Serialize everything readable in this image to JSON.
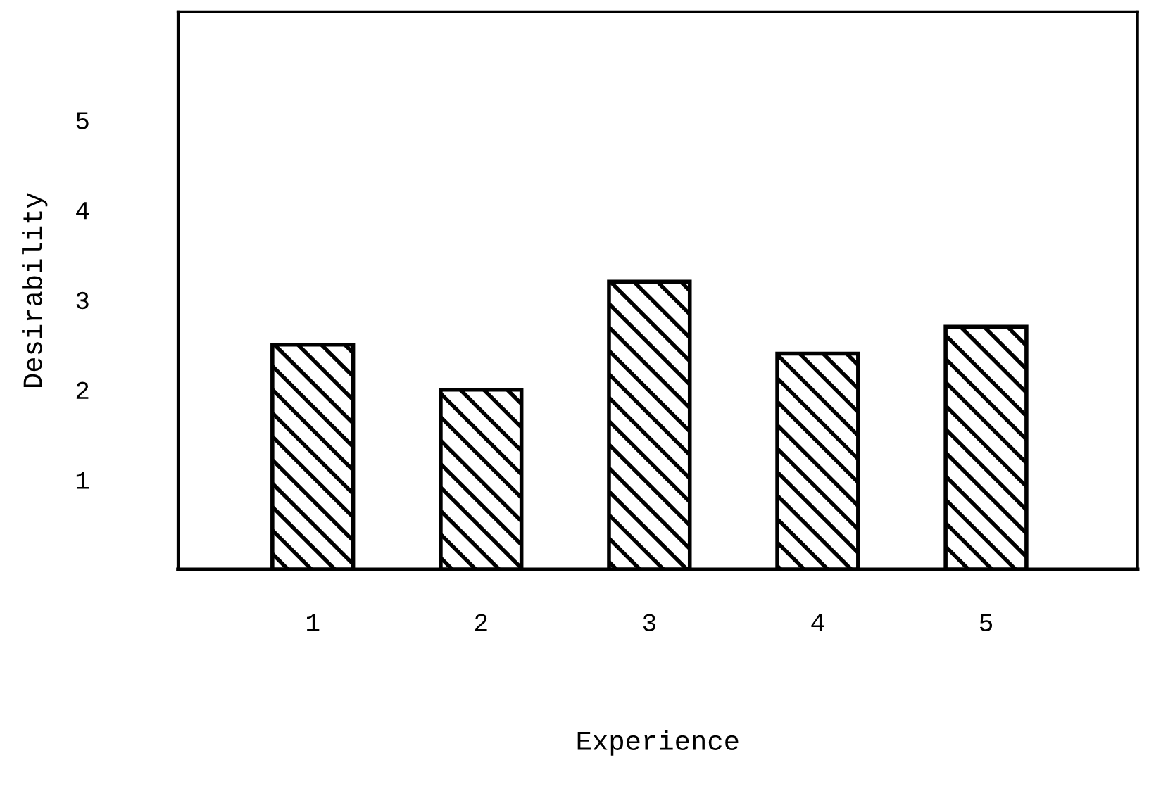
{
  "chart_data": {
    "type": "bar",
    "xlabel": "Experience",
    "ylabel": "Desirability",
    "categories": [
      "1",
      "2",
      "3",
      "4",
      "5"
    ],
    "values": [
      2.5,
      2.0,
      3.2,
      2.4,
      2.7
    ],
    "color": "#000000",
    "ylim": [
      0,
      6.2
    ],
    "yticks": [
      1,
      2,
      3,
      4,
      5
    ],
    "grid": false,
    "legend": false
  }
}
